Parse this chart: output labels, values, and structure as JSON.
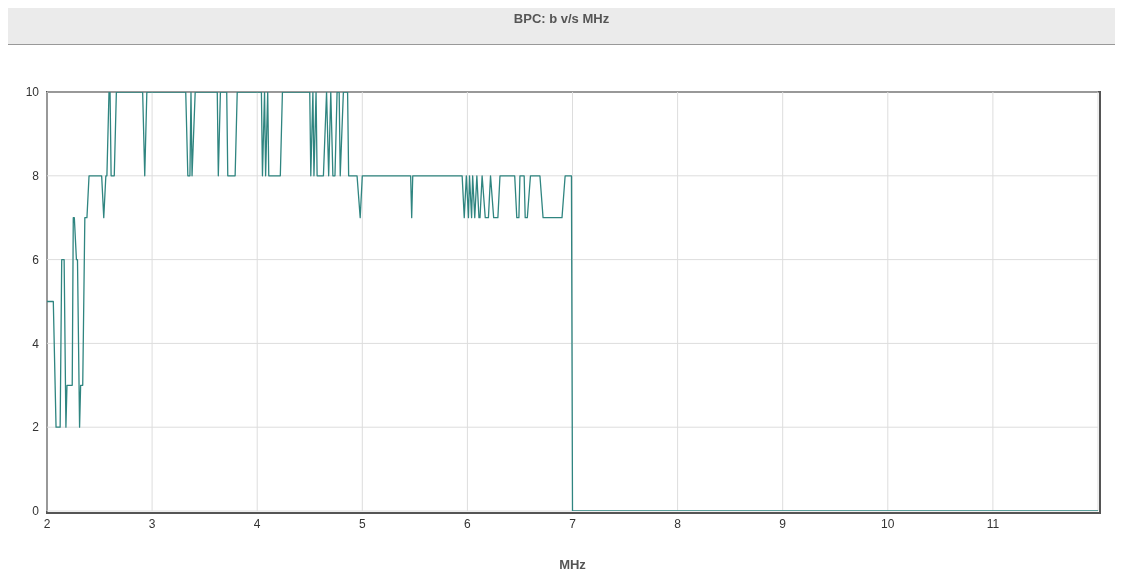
{
  "chart_data": {
    "type": "line",
    "title": "BPC: b v/s MHz",
    "xlabel": "MHz",
    "xlim": [
      2,
      12
    ],
    "xticks": [
      2,
      3,
      4,
      5,
      6,
      7,
      8,
      9,
      10,
      11
    ],
    "ylim": [
      0,
      10
    ],
    "yticks": [
      0,
      2,
      4,
      6,
      8,
      10
    ],
    "grid": true,
    "marker": "none",
    "line_style": "solid",
    "series": [
      {
        "color": "#2f8580",
        "x": [
          2.0,
          2.06,
          2.086,
          2.125,
          2.14,
          2.163,
          2.18,
          2.19,
          2.24,
          2.25,
          2.26,
          2.28,
          2.29,
          2.31,
          2.32,
          2.34,
          2.36,
          2.38,
          2.4,
          2.52,
          2.54,
          2.56,
          2.57,
          2.59,
          2.6,
          2.61,
          2.64,
          2.66,
          2.91,
          2.93,
          2.95,
          3.32,
          3.34,
          3.36,
          3.37,
          3.38,
          3.41,
          3.62,
          3.63,
          3.65,
          3.71,
          3.72,
          3.79,
          3.81,
          4.04,
          4.05,
          4.07,
          4.08,
          4.1,
          4.11,
          4.22,
          4.24,
          4.5,
          4.51,
          4.53,
          4.54,
          4.56,
          4.57,
          4.63,
          4.66,
          4.68,
          4.7,
          4.72,
          4.74,
          4.76,
          4.78,
          4.79,
          4.82,
          4.86,
          4.87,
          4.95,
          4.98,
          5.0,
          5.46,
          5.47,
          5.48,
          5.95,
          5.97,
          5.99,
          6.01,
          6.02,
          6.04,
          6.05,
          6.07,
          6.09,
          6.11,
          6.12,
          6.14,
          6.17,
          6.2,
          6.22,
          6.25,
          6.29,
          6.31,
          6.45,
          6.47,
          6.49,
          6.5,
          6.54,
          6.55,
          6.57,
          6.6,
          6.69,
          6.72,
          6.9,
          6.93,
          6.99,
          7.0,
          12
        ],
        "values": [
          5,
          5,
          2,
          2,
          6,
          6,
          2,
          3,
          3,
          7,
          7,
          6,
          6,
          2,
          3,
          3,
          7,
          7,
          8,
          8,
          7,
          8,
          8,
          10,
          10,
          8,
          8,
          10,
          10,
          8,
          10,
          10,
          8,
          8,
          10,
          8,
          10,
          10,
          8,
          10,
          10,
          8,
          8,
          10,
          10,
          8,
          10,
          8,
          10,
          8,
          8,
          10,
          10,
          8,
          10,
          8,
          10,
          8,
          8,
          10,
          8,
          10,
          8,
          8,
          10,
          10,
          8,
          10,
          10,
          8,
          8,
          7,
          8,
          8,
          7,
          8,
          8,
          7,
          8,
          7,
          8,
          7,
          8,
          7,
          8,
          7,
          7,
          8,
          7,
          7,
          8,
          7,
          7,
          8,
          8,
          7,
          7,
          8,
          8,
          7,
          7,
          8,
          8,
          7,
          7,
          8,
          8,
          0,
          0
        ]
      }
    ]
  }
}
